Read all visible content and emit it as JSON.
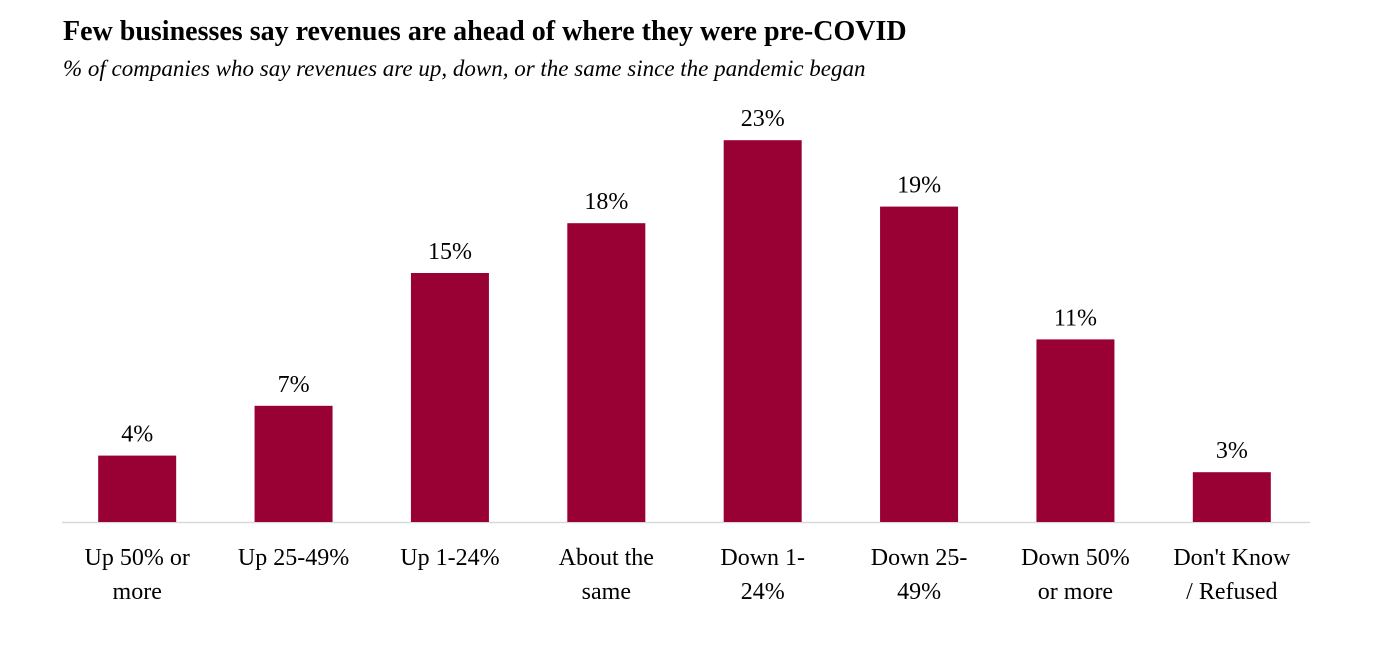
{
  "chart_data": {
    "type": "bar",
    "title": "Few businesses say revenues are ahead of where they were pre-COVID",
    "subtitle": "% of companies who say revenues are up, down, or the same since the pandemic began",
    "categories": [
      "Up 50% or more",
      "Up 25-49%",
      "Up 1-24%",
      "About the same",
      "Down 1-24%",
      "Down 25-49%",
      "Down 50% or more",
      "Don't Know / Refused"
    ],
    "values": [
      4,
      7,
      15,
      18,
      23,
      19,
      11,
      3
    ],
    "value_labels": [
      "4%",
      "7%",
      "15%",
      "18%",
      "23%",
      "19%",
      "11%",
      "3%"
    ],
    "color": "#990033"
  }
}
